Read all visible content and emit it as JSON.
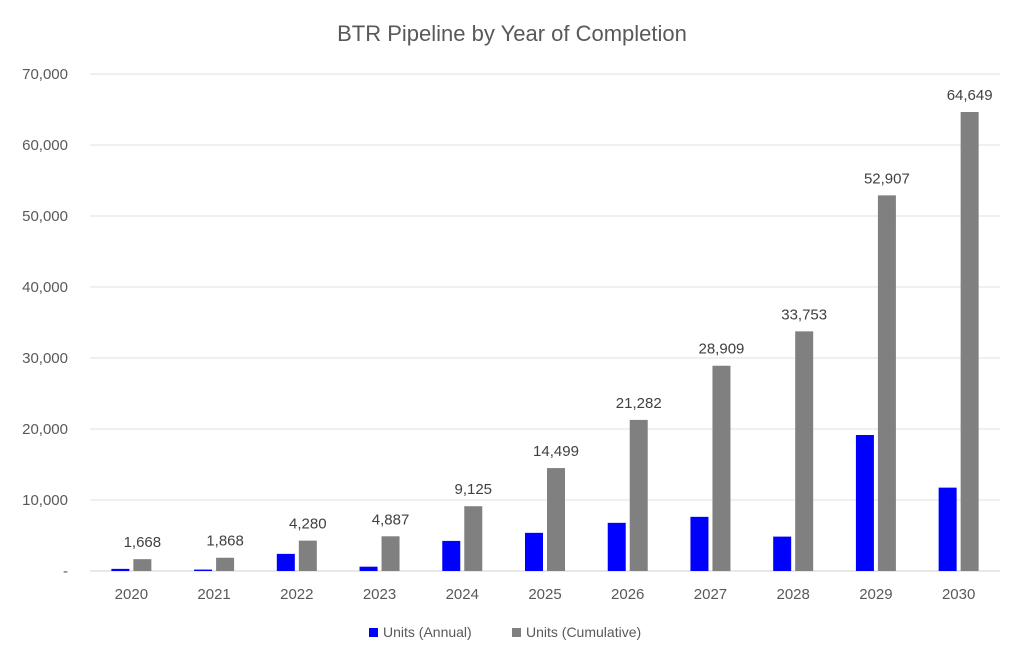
{
  "chart_data": {
    "type": "bar",
    "title": "BTR Pipeline by Year of Completion",
    "xlabel": "",
    "ylabel": "",
    "ylim": [
      0,
      70000
    ],
    "yticks": [
      0,
      10000,
      20000,
      30000,
      40000,
      50000,
      60000,
      70000
    ],
    "ytick_labels": [
      "-",
      "10,000",
      "20,000",
      "30,000",
      "40,000",
      "50,000",
      "60,000",
      "70,000"
    ],
    "grid": true,
    "legend_position": "bottom",
    "categories": [
      "2020",
      "2021",
      "2022",
      "2023",
      "2024",
      "2025",
      "2026",
      "2027",
      "2028",
      "2029",
      "2030"
    ],
    "series": [
      {
        "name": "Units (Annual)",
        "color": "#0000FF",
        "values": [
          300,
          200,
          2412,
          607,
          4238,
          5374,
          6783,
          7627,
          4844,
          19154,
          11742
        ]
      },
      {
        "name": "Units (Cumulative)",
        "color": "#808080",
        "values": [
          1668,
          1868,
          4280,
          4887,
          9125,
          14499,
          21282,
          28909,
          33753,
          52907,
          64649
        ],
        "data_labels": [
          "1,668",
          "1,868",
          "4,280",
          "4,887",
          "9,125",
          "14,499",
          "21,282",
          "28,909",
          "33,753",
          "52,907",
          "64,649"
        ]
      }
    ]
  }
}
